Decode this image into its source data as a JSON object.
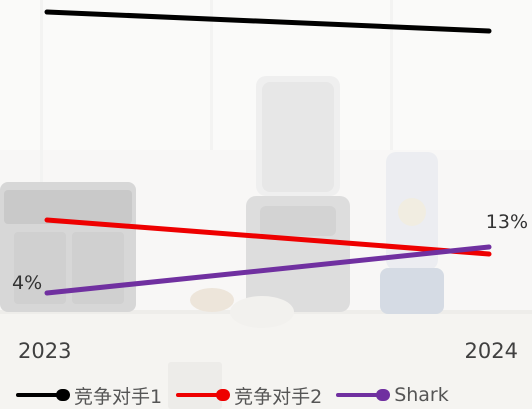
{
  "chart_data": {
    "type": "line",
    "categories": [
      "2023",
      "2024"
    ],
    "series": [
      {
        "name": "竞争对手1",
        "values": [
          null,
          null
        ],
        "color": "#000000"
      },
      {
        "name": "竞争对手2",
        "values": [
          null,
          null
        ],
        "color": "#ee0000"
      },
      {
        "name": "Shark",
        "values": [
          4,
          13
        ],
        "color": "#7030a0",
        "data_labels": [
          "4%",
          "13%"
        ]
      }
    ],
    "title": "",
    "xlabel": "",
    "ylabel": "",
    "unit": "%",
    "legend_position": "bottom",
    "grid": false
  }
}
